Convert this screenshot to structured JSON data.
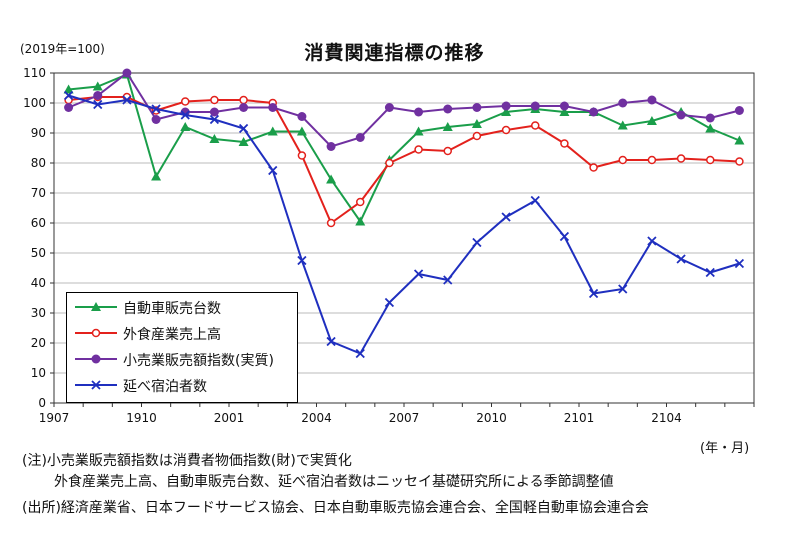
{
  "chart_data": {
    "type": "line",
    "title": "消費関連指標の推移",
    "unit_label": "(2019年=100)",
    "x_unit_label": "(年・月)",
    "categories": [
      "1907",
      "1908",
      "1909",
      "1910",
      "1911",
      "1912",
      "2001",
      "2002",
      "2003",
      "2004",
      "2005",
      "2006",
      "2007",
      "2008",
      "2009",
      "2010",
      "2011",
      "2012",
      "2101",
      "2102",
      "2103",
      "2104",
      "2105",
      "2106"
    ],
    "x_tick_labels": [
      "1907",
      "1910",
      "2001",
      "2004",
      "2007",
      "2010",
      "2101",
      "2104"
    ],
    "ylim": [
      0,
      110
    ],
    "y_ticks": [
      0,
      10,
      20,
      30,
      40,
      50,
      60,
      70,
      80,
      90,
      100,
      110
    ],
    "grid": true,
    "legend_position": "bottom-left",
    "series": [
      {
        "name": "自動車販売台数",
        "color": "#1a9e4a",
        "marker": "triangle",
        "values": [
          104.5,
          105.5,
          109.5,
          75.5,
          92,
          88,
          87,
          90.5,
          90.5,
          74.5,
          60.5,
          81,
          90.5,
          92,
          93,
          97,
          98,
          97,
          97,
          92.5,
          94,
          97,
          91.5,
          87.5
        ]
      },
      {
        "name": "外食産業売上高",
        "color": "#e3211c",
        "marker": "circle",
        "values": [
          101,
          102,
          102,
          97.5,
          100.5,
          101,
          101,
          100,
          82.5,
          60,
          67,
          80,
          84.5,
          84,
          89,
          91,
          92.5,
          86.5,
          78.5,
          81,
          81,
          81.5,
          81,
          80.5
        ]
      },
      {
        "name": "小売業販売額指数(実質)",
        "color": "#7030a0",
        "marker": "circle-filled",
        "values": [
          98.5,
          102.5,
          110,
          94.5,
          97,
          97,
          98.5,
          98.5,
          95.5,
          85.5,
          88.5,
          98.5,
          97,
          98,
          98.5,
          99,
          99,
          99,
          97,
          100,
          101,
          96,
          95,
          97.5
        ]
      },
      {
        "name": "延べ宿泊者数",
        "color": "#1f2fbf",
        "marker": "x",
        "values": [
          102.5,
          99.5,
          101,
          98,
          96,
          94.5,
          91.5,
          77.5,
          47.5,
          20.5,
          16.5,
          33.5,
          43,
          41,
          53.5,
          62,
          67.5,
          55.5,
          36.5,
          38,
          54,
          48,
          43.5,
          46.5
        ]
      }
    ]
  },
  "notes": [
    "(注)小売業販売額指数は消費者物価指数(財)で実質化",
    "外食産業売上高、自動車販売台数、延べ宿泊者数はニッセイ基礎研究所による季節調整値",
    "(出所)経済産業省、日本フードサービス協会、日本自動車販売協会連合会、全国軽自動車協会連合会"
  ]
}
